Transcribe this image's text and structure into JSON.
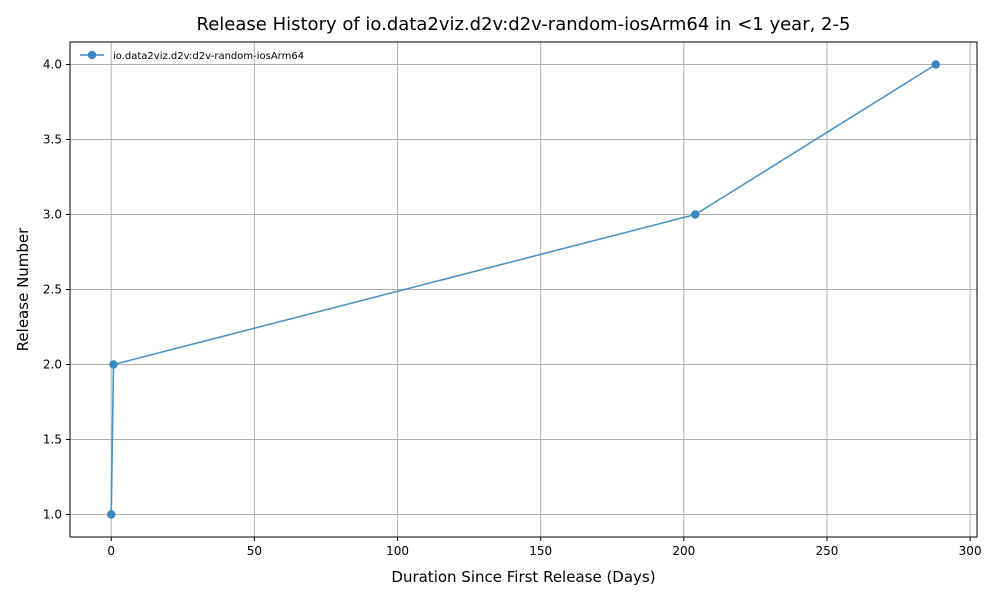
{
  "chart_data": {
    "type": "line",
    "title": "Release History of io.data2viz.d2v:d2v-random-iosArm64 in <1 year, 2-5",
    "xlabel": "Duration Since First Release (Days)",
    "ylabel": "Release Number",
    "xlim": [
      -14.4,
      302.4
    ],
    "ylim": [
      0.85,
      4.15
    ],
    "x_ticks": [
      0,
      50,
      100,
      150,
      200,
      250,
      300
    ],
    "y_ticks": [
      1.0,
      1.5,
      2.0,
      2.5,
      3.0,
      3.5,
      4.0
    ],
    "x_tick_labels": [
      "0",
      "50",
      "100",
      "150",
      "200",
      "250",
      "300"
    ],
    "y_tick_labels": [
      "1.0",
      "1.5",
      "2.0",
      "2.5",
      "3.0",
      "3.5",
      "4.0"
    ],
    "grid": true,
    "legend_position": "top-left",
    "series": [
      {
        "name": "io.data2viz.d2v:d2v-random-iosArm64",
        "color": "#3a87bf",
        "marker": "circle",
        "x": [
          0,
          0.8,
          204,
          288
        ],
        "y": [
          1,
          2,
          3,
          4
        ]
      }
    ]
  }
}
